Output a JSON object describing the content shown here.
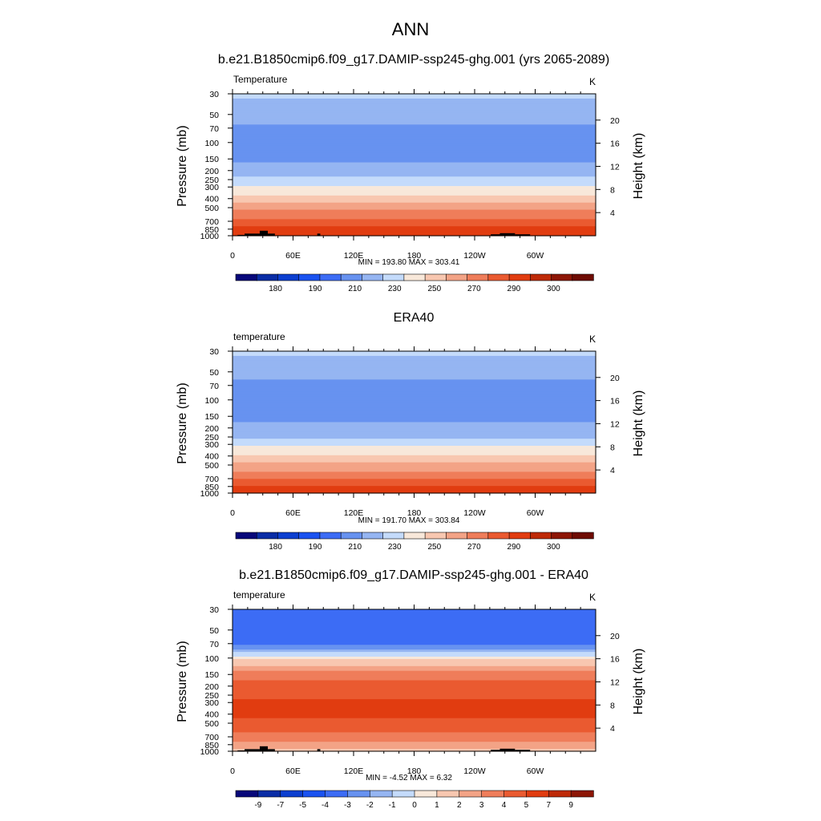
{
  "main_title": "ANN",
  "colors": {
    "temp_scale": [
      "#08087a",
      "#0a2da6",
      "#0c3fd0",
      "#1a52f0",
      "#3c6cf5",
      "#6792f0",
      "#95b5f2",
      "#c4dbfb",
      "#f8e8da",
      "#f8c7b0",
      "#f3a386",
      "#ef7d5a",
      "#ea5a30",
      "#e13c10",
      "#be2a08",
      "#8d1606",
      "#6e0c03"
    ],
    "diff_scale": [
      "#08087a",
      "#0a2da6",
      "#0c3fd0",
      "#1a52f0",
      "#3c6cf5",
      "#6792f0",
      "#95b5f2",
      "#c4dbfb",
      "#f8e8da",
      "#f8c7b0",
      "#f3a386",
      "#ef7d5a",
      "#ea5a30",
      "#e13c10",
      "#be2a08",
      "#8d1606"
    ],
    "topography": "#000000"
  },
  "chart_data": [
    {
      "type": "heatmap",
      "title": "b.e21.B1850cmip6.f09_g17.DAMIP-ssp245-ghg.001 (yrs 2065-2089)",
      "variable": "Temperature",
      "units": "K",
      "ylabel": "Pressure (mb)",
      "y2label": "Height (km)",
      "xticks": [
        "0",
        "60E",
        "120E",
        "180",
        "120W",
        "60W"
      ],
      "xtick_values": [
        0,
        60,
        120,
        180,
        240,
        300
      ],
      "xlim": [
        0,
        360
      ],
      "pressure_ticks": [
        "30",
        "50",
        "70",
        "100",
        "150",
        "200",
        "250",
        "300",
        "400",
        "500",
        "700",
        "850",
        "1000"
      ],
      "pressure_values": [
        30,
        50,
        70,
        100,
        150,
        200,
        250,
        300,
        400,
        500,
        700,
        850,
        1000
      ],
      "height_ticks": [
        "4",
        "8",
        "12",
        "16",
        "20"
      ],
      "height_values": [
        4,
        8,
        12,
        16,
        20
      ],
      "ylim": [
        1000,
        30
      ],
      "stats": "MIN = 193.80  MAX = 303.41",
      "min": 193.8,
      "max": 303.41,
      "colorbar_labels": [
        "180",
        "190",
        "210",
        "230",
        "250",
        "270",
        "290",
        "300"
      ],
      "levels": [
        175,
        180,
        185,
        190,
        200,
        210,
        220,
        230,
        240,
        250,
        260,
        270,
        280,
        290,
        295,
        300
      ],
      "profile": {
        "p": [
          30,
          50,
          70,
          100,
          150,
          200,
          250,
          300,
          400,
          500,
          700,
          850,
          1000
        ],
        "v": [
          222,
          215,
          208,
          204,
          208,
          215,
          222,
          231,
          245,
          257,
          272,
          283,
          291
        ]
      },
      "terrain": true
    },
    {
      "type": "heatmap",
      "title": "ERA40",
      "variable": "temperature",
      "units": "K",
      "ylabel": "Pressure (mb)",
      "y2label": "Height (km)",
      "xticks": [
        "0",
        "60E",
        "120E",
        "180",
        "120W",
        "60W"
      ],
      "xtick_values": [
        0,
        60,
        120,
        180,
        240,
        300
      ],
      "xlim": [
        0,
        360
      ],
      "pressure_ticks": [
        "30",
        "50",
        "70",
        "100",
        "150",
        "200",
        "250",
        "300",
        "400",
        "500",
        "700",
        "850",
        "1000"
      ],
      "pressure_values": [
        30,
        50,
        70,
        100,
        150,
        200,
        250,
        300,
        400,
        500,
        700,
        850,
        1000
      ],
      "height_ticks": [
        "4",
        "8",
        "12",
        "16",
        "20"
      ],
      "height_values": [
        4,
        8,
        12,
        16,
        20
      ],
      "ylim": [
        1000,
        30
      ],
      "stats": "MIN = 191.70  MAX = 303.84",
      "min": 191.7,
      "max": 303.84,
      "colorbar_labels": [
        "180",
        "190",
        "210",
        "230",
        "250",
        "270",
        "290",
        "300"
      ],
      "levels": [
        175,
        180,
        185,
        190,
        200,
        210,
        220,
        230,
        240,
        250,
        260,
        270,
        280,
        290,
        295,
        300
      ],
      "profile": {
        "p": [
          30,
          50,
          70,
          100,
          150,
          200,
          250,
          300,
          400,
          500,
          700,
          850,
          1000
        ],
        "v": [
          222,
          214,
          206,
          202,
          206,
          213,
          219,
          227,
          241,
          253,
          268,
          280,
          289
        ]
      },
      "terrain": false
    },
    {
      "type": "heatmap",
      "title": "b.e21.B1850cmip6.f09_g17.DAMIP-ssp245-ghg.001 - ERA40",
      "variable": "temperature",
      "units": "K",
      "ylabel": "Pressure (mb)",
      "y2label": "Height (km)",
      "xticks": [
        "0",
        "60E",
        "120E",
        "180",
        "120W",
        "60W"
      ],
      "xtick_values": [
        0,
        60,
        120,
        180,
        240,
        300
      ],
      "xlim": [
        0,
        360
      ],
      "pressure_ticks": [
        "30",
        "50",
        "70",
        "100",
        "150",
        "200",
        "250",
        "300",
        "400",
        "500",
        "700",
        "850",
        "1000"
      ],
      "pressure_values": [
        30,
        50,
        70,
        100,
        150,
        200,
        250,
        300,
        400,
        500,
        700,
        850,
        1000
      ],
      "height_ticks": [
        "4",
        "8",
        "12",
        "16",
        "20"
      ],
      "height_values": [
        4,
        8,
        12,
        16,
        20
      ],
      "ylim": [
        1000,
        30
      ],
      "stats": "MIN =  -4.52  MAX =   6.32",
      "min": -4.52,
      "max": 6.32,
      "colorbar_labels": [
        "-9",
        "-7",
        "-5",
        "-4",
        "-3",
        "-2",
        "-1",
        "0",
        "1",
        "2",
        "3",
        "4",
        "5",
        "7",
        "9"
      ],
      "levels": [
        -9,
        -7,
        -5,
        -4,
        -3,
        -2,
        -1,
        0,
        1,
        2,
        3,
        4,
        5,
        7,
        9
      ],
      "profile": {
        "p": [
          30,
          50,
          70,
          100,
          150,
          200,
          250,
          300,
          400,
          500,
          700,
          850,
          1000
        ],
        "v": [
          -3.3,
          -3.8,
          -3.6,
          0.6,
          3.7,
          4.3,
          4.7,
          5.2,
          5.3,
          4.6,
          3.6,
          2.4,
          1.8
        ]
      },
      "terrain": true
    }
  ]
}
